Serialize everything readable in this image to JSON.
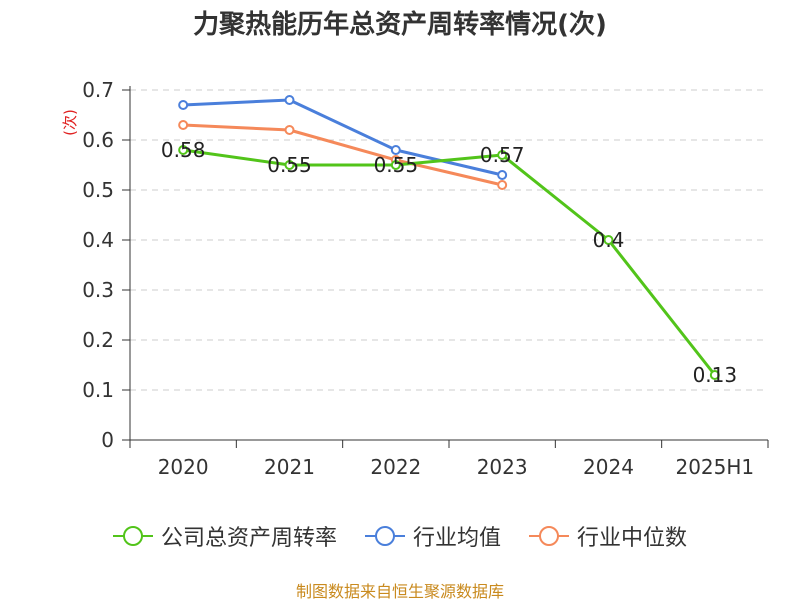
{
  "chart_data": {
    "type": "line",
    "title": "力聚热能历年总资产周转率情况(次)",
    "ylabel": "(次)",
    "categories": [
      "2020",
      "2021",
      "2022",
      "2023",
      "2024",
      "2025H1"
    ],
    "ylim": [
      0,
      0.7
    ],
    "yticks": [
      "0",
      "0.1",
      "0.2",
      "0.3",
      "0.4",
      "0.5",
      "0.6",
      "0.7"
    ],
    "grid": true,
    "legend_position": "bottom",
    "series": [
      {
        "name": "公司总资产周转率",
        "color": "#52c41a",
        "values": [
          0.58,
          0.55,
          0.55,
          0.57,
          0.4,
          0.13
        ],
        "labels": [
          "0.58",
          "0.55",
          "0.55",
          "0.57",
          "0.4",
          "0.13"
        ]
      },
      {
        "name": "行业均值",
        "color": "#4a7fdb",
        "values": [
          0.67,
          0.68,
          0.58,
          0.53,
          null,
          null
        ]
      },
      {
        "name": "行业中位数",
        "color": "#f5895a",
        "values": [
          0.63,
          0.62,
          0.56,
          0.51,
          null,
          null
        ]
      }
    ]
  },
  "source": "制图数据来自恒生聚源数据库"
}
